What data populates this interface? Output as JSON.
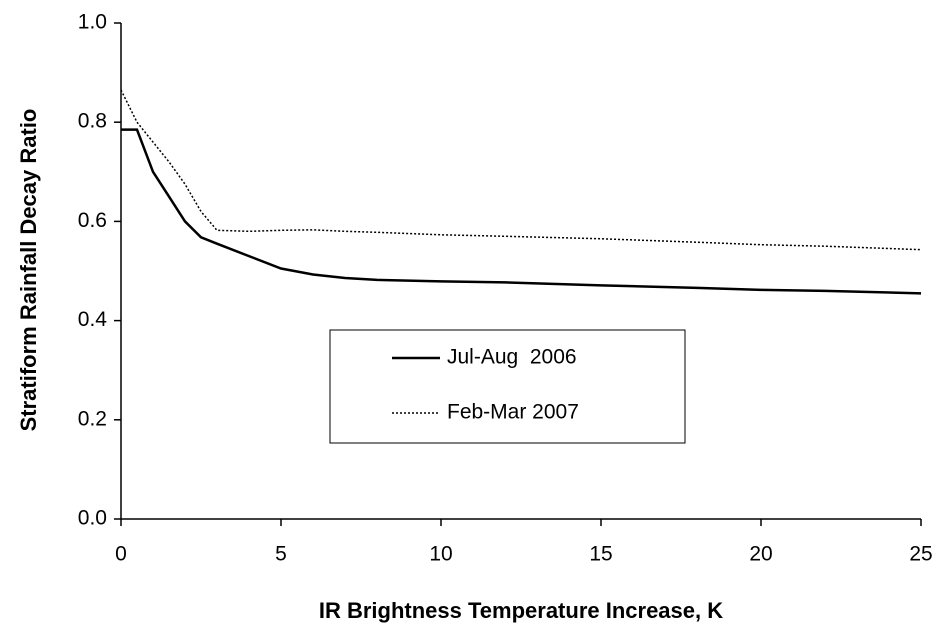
{
  "chart_data": {
    "type": "line",
    "xlabel": "IR Brightness Temperature Increase, K",
    "ylabel": "Stratiform Rainfall Decay Ratio",
    "x": [
      0,
      0.5,
      1,
      1.5,
      2,
      2.5,
      3,
      4,
      5,
      6,
      7,
      8,
      10,
      12,
      15,
      18,
      20,
      22,
      25
    ],
    "series": [
      {
        "name": "Jul-Aug  2006",
        "color": "#000000",
        "dash": "solid",
        "values": [
          0.785,
          0.785,
          0.7,
          0.65,
          0.6,
          0.568,
          0.555,
          0.53,
          0.505,
          0.493,
          0.486,
          0.482,
          0.479,
          0.477,
          0.471,
          0.466,
          0.462,
          0.46,
          0.455
        ]
      },
      {
        "name": "Feb-Mar 2007",
        "color": "#000000",
        "dash": "dotted",
        "values": [
          0.865,
          0.8,
          0.76,
          0.72,
          0.675,
          0.62,
          0.582,
          0.58,
          0.582,
          0.583,
          0.58,
          0.578,
          0.573,
          0.57,
          0.565,
          0.558,
          0.553,
          0.55,
          0.543
        ]
      }
    ],
    "xlim": [
      0,
      25
    ],
    "xticks": [
      0,
      5,
      10,
      15,
      20,
      25
    ],
    "ylim": [
      0,
      1
    ],
    "yticks": [
      {
        "value": 0,
        "label": "0.0"
      },
      0.2,
      0.4,
      0.6,
      0.8,
      {
        "value": 1,
        "label": "1.0"
      }
    ],
    "grid": false,
    "legend": "center"
  }
}
